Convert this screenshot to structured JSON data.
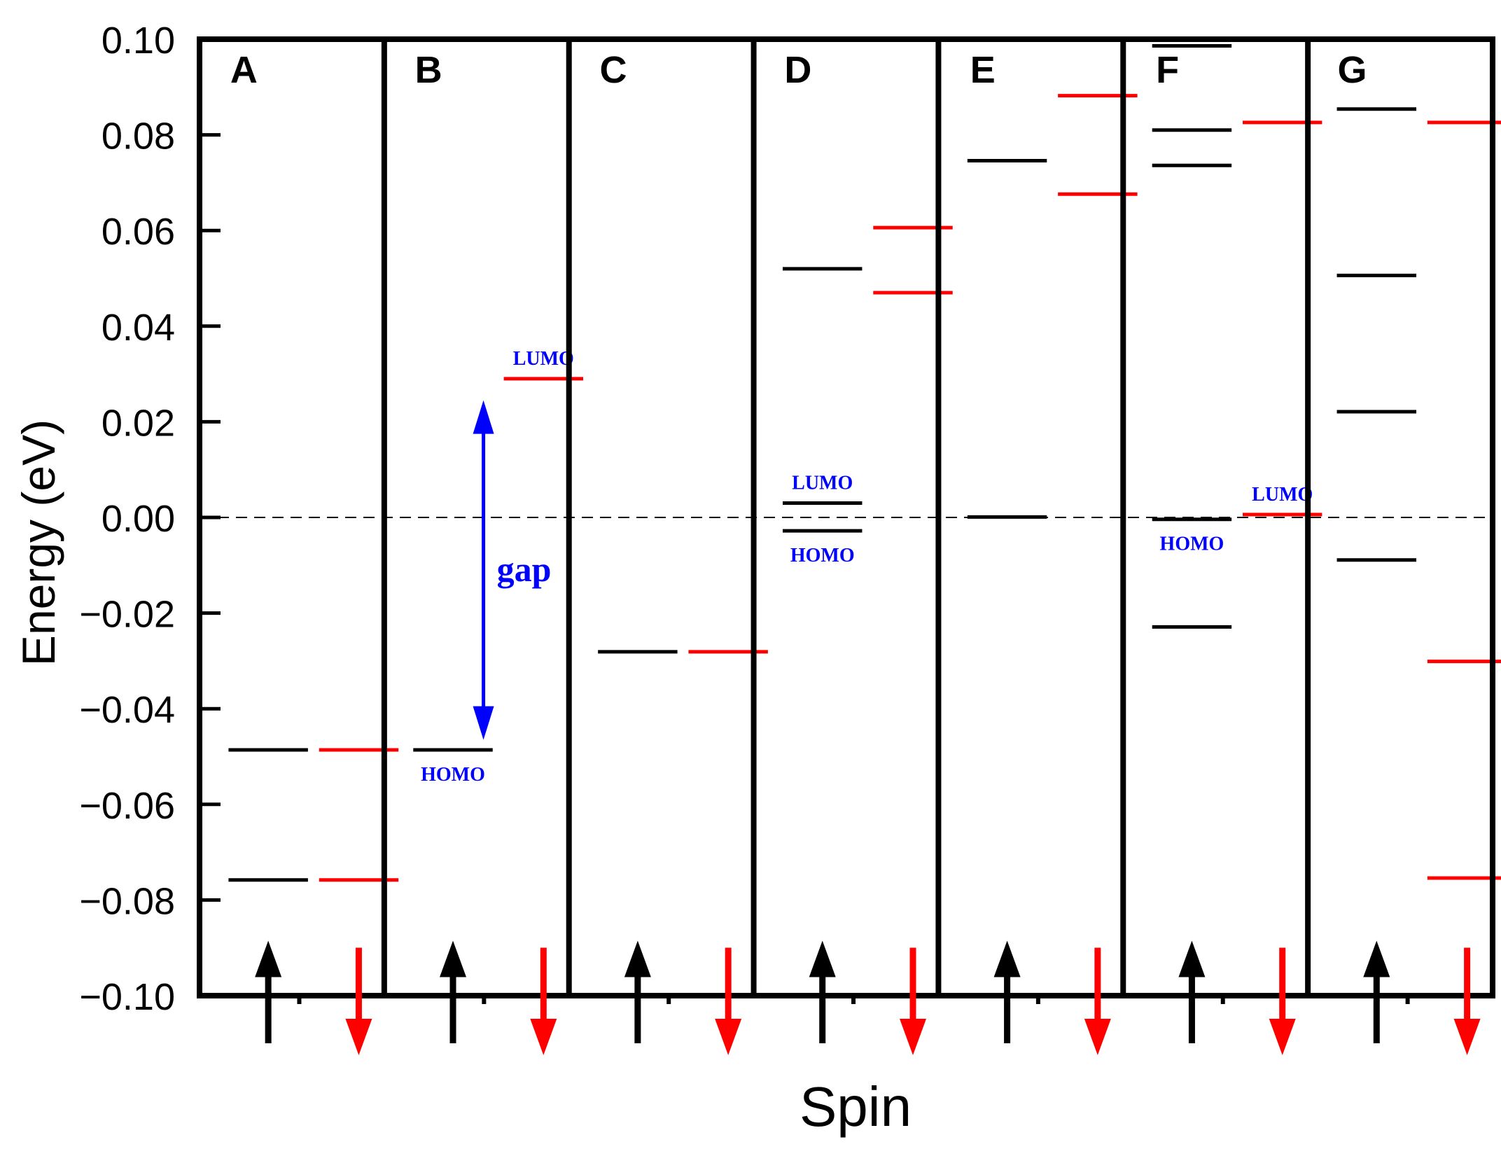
{
  "chart_data": {
    "type": "energy-level",
    "xlabel": "Spin",
    "ylabel": "Energy (eV)",
    "ylim": [
      -0.1,
      0.1
    ],
    "yticks": [
      "0.10",
      "0.08",
      "0.06",
      "0.04",
      "0.02",
      "0.00",
      "−0.02",
      "−0.04",
      "−0.06",
      "−0.08",
      "−0.10"
    ],
    "ytick_values": [
      0.1,
      0.08,
      0.06,
      0.04,
      0.02,
      0.0,
      -0.02,
      -0.04,
      -0.06,
      -0.08,
      -0.1
    ],
    "fermi_level": 0.0,
    "colors": {
      "spin_up": "#000000",
      "spin_down": "#ff0000",
      "annotation": "#0000ff",
      "fermi_line": "#000000"
    },
    "panels": [
      {
        "label": "A",
        "spin_up": [
          -0.0486,
          -0.0758
        ],
        "spin_down": [
          -0.0486,
          -0.0758
        ]
      },
      {
        "label": "B",
        "spin_up": [
          -0.0486
        ],
        "spin_down": [
          0.029
        ]
      },
      {
        "label": "C",
        "spin_up": [
          -0.0281
        ],
        "spin_down": [
          -0.0281
        ]
      },
      {
        "label": "D",
        "spin_up": [
          0.052,
          0.003,
          -0.0028
        ],
        "spin_down": [
          0.0606,
          0.047
        ]
      },
      {
        "label": "E",
        "spin_up": [
          0.0746,
          0.0001
        ],
        "spin_down": [
          0.0882,
          0.0676
        ]
      },
      {
        "label": "F",
        "spin_up": [
          0.0986,
          0.081,
          0.0736,
          -0.0004,
          -0.0229
        ],
        "spin_down": [
          0.0826,
          0.0006
        ]
      },
      {
        "label": "G",
        "spin_up": [
          0.0854,
          0.0506,
          0.0221,
          -0.0089
        ],
        "spin_down": [
          0.0826,
          -0.0301,
          -0.0754
        ]
      }
    ],
    "annotations": [
      {
        "panel": 1,
        "spin": "down",
        "level": 0.029,
        "text": "LUMO",
        "placement": "above"
      },
      {
        "panel": 1,
        "spin": "up",
        "level": -0.0486,
        "text": "HOMO",
        "placement": "below"
      },
      {
        "panel": 1,
        "type": "double-arrow",
        "from": -0.0465,
        "to": 0.0245,
        "text": "gap"
      },
      {
        "panel": 3,
        "spin": "up",
        "level": 0.003,
        "text": "LUMO",
        "placement": "above"
      },
      {
        "panel": 3,
        "spin": "up",
        "level": -0.0028,
        "text": "HOMO",
        "placement": "below"
      },
      {
        "panel": 5,
        "spin": "up",
        "level": -0.0004,
        "text": "HOMO",
        "placement": "below"
      },
      {
        "panel": 5,
        "spin": "down",
        "level": 0.0006,
        "text": "LUMO",
        "placement": "above"
      }
    ]
  }
}
